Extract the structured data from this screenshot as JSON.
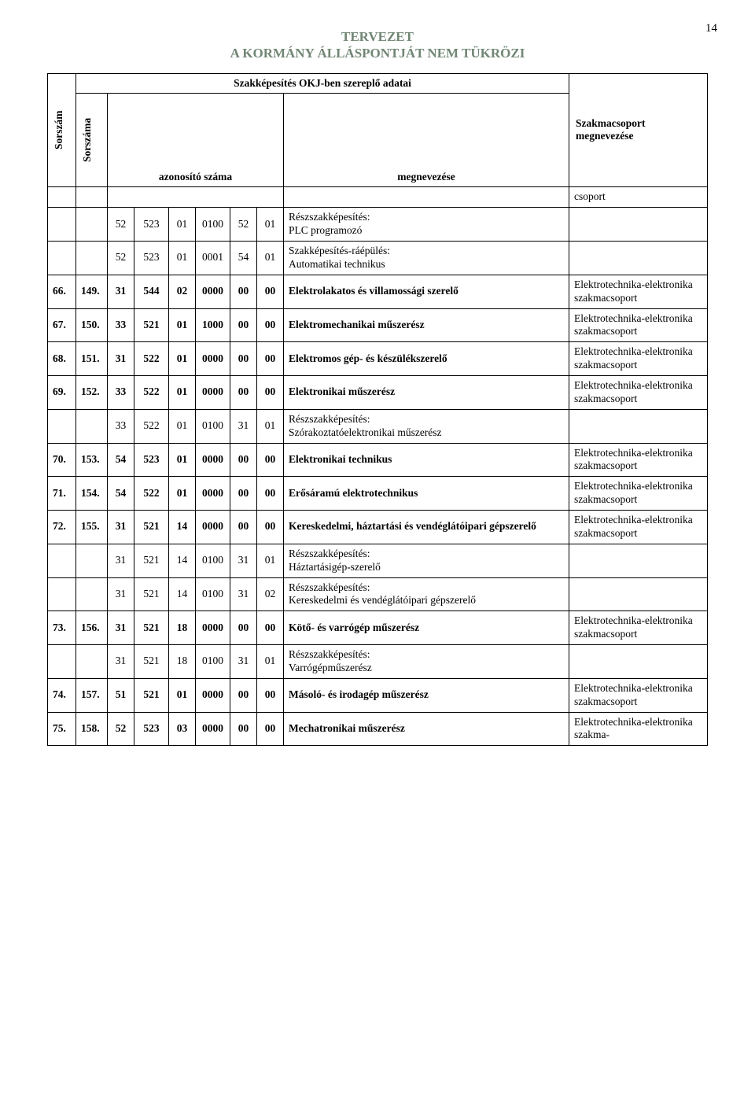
{
  "page_number": "14",
  "doc_header_line1": "TERVEZET",
  "doc_header_line2": "A KORMÁNY ÁLLÁSPONTJÁT NEM TÜKRÖZI",
  "header": {
    "sorszam": "Sorszám",
    "sorszama": "Sorszáma",
    "okj_title": "Szakképesítés OKJ-ben szereplő adatai",
    "azonosito": "azonosító száma",
    "megnevezese": "megnevezése",
    "szakmacsoport": "Szakmacsoport megnevezése",
    "csoport_trailing": "csoport"
  },
  "labels": {
    "ressz": "Részszakképesítés:",
    "raepules": "Szakképesítés-ráépülés:"
  },
  "group_tech": "Elektrotechnika-elektronika szakmacsoport",
  "group_tech_partial": "Elektrotechnika-elektronika szakma-",
  "rows": [
    {
      "type": "sub",
      "code": [
        "52",
        "523",
        "01",
        "0100",
        "52",
        "01"
      ],
      "prefix_key": "ressz",
      "name": "PLC programozó"
    },
    {
      "type": "sub",
      "code": [
        "52",
        "523",
        "01",
        "0001",
        "54",
        "01"
      ],
      "prefix_key": "raepules",
      "name": "Automatikai technikus"
    },
    {
      "type": "main",
      "n1": "66.",
      "n2": "149.",
      "code": [
        "31",
        "544",
        "02",
        "0000",
        "00",
        "00"
      ],
      "name": "Elektrolakatos és villamossági szerelő",
      "group": "group_tech"
    },
    {
      "type": "main",
      "n1": "67.",
      "n2": "150.",
      "code": [
        "33",
        "521",
        "01",
        "1000",
        "00",
        "00"
      ],
      "name": "Elektromechanikai műszerész",
      "group": "group_tech"
    },
    {
      "type": "main",
      "n1": "68.",
      "n2": "151.",
      "code": [
        "31",
        "522",
        "01",
        "0000",
        "00",
        "00"
      ],
      "name": "Elektromos gép- és készülékszerelő",
      "group": "group_tech"
    },
    {
      "type": "main",
      "n1": "69.",
      "n2": "152.",
      "code": [
        "33",
        "522",
        "01",
        "0000",
        "00",
        "00"
      ],
      "name": "Elektronikai műszerész",
      "group": "group_tech"
    },
    {
      "type": "sub",
      "code": [
        "33",
        "522",
        "01",
        "0100",
        "31",
        "01"
      ],
      "prefix_key": "ressz",
      "name": "Szórakoztatóelektronikai műszerész"
    },
    {
      "type": "main",
      "n1": "70.",
      "n2": "153.",
      "code": [
        "54",
        "523",
        "01",
        "0000",
        "00",
        "00"
      ],
      "name": "Elektronikai technikus",
      "group": "group_tech"
    },
    {
      "type": "main",
      "n1": "71.",
      "n2": "154.",
      "code": [
        "54",
        "522",
        "01",
        "0000",
        "00",
        "00"
      ],
      "name": "Erősáramú elektrotechnikus",
      "group": "group_tech"
    },
    {
      "type": "main",
      "n1": "72.",
      "n2": "155.",
      "code": [
        "31",
        "521",
        "14",
        "0000",
        "00",
        "00"
      ],
      "name": "Kereskedelmi, háztartási és vendéglátóipari gépszerelő",
      "group": "group_tech"
    },
    {
      "type": "sub",
      "code": [
        "31",
        "521",
        "14",
        "0100",
        "31",
        "01"
      ],
      "prefix_key": "ressz",
      "name": "Háztartásigép-szerelő"
    },
    {
      "type": "sub",
      "code": [
        "31",
        "521",
        "14",
        "0100",
        "31",
        "02"
      ],
      "prefix_key": "ressz",
      "name": "Kereskedelmi és vendéglátóipari gépszerelő"
    },
    {
      "type": "main",
      "n1": "73.",
      "n2": "156.",
      "code": [
        "31",
        "521",
        "18",
        "0000",
        "00",
        "00"
      ],
      "name": "Kötő- és varrógép műszerész",
      "group": "group_tech"
    },
    {
      "type": "sub",
      "code": [
        "31",
        "521",
        "18",
        "0100",
        "31",
        "01"
      ],
      "prefix_key": "ressz",
      "name": "Varrógépműszerész"
    },
    {
      "type": "main",
      "n1": "74.",
      "n2": "157.",
      "code": [
        "51",
        "521",
        "01",
        "0000",
        "00",
        "00"
      ],
      "name": "Másoló- és irodagép műszerész",
      "group": "group_tech"
    },
    {
      "type": "main",
      "n1": "75.",
      "n2": "158.",
      "code": [
        "52",
        "523",
        "03",
        "0000",
        "00",
        "00"
      ],
      "name": "Mechatronikai műszerész",
      "group": "group_tech_partial"
    }
  ]
}
